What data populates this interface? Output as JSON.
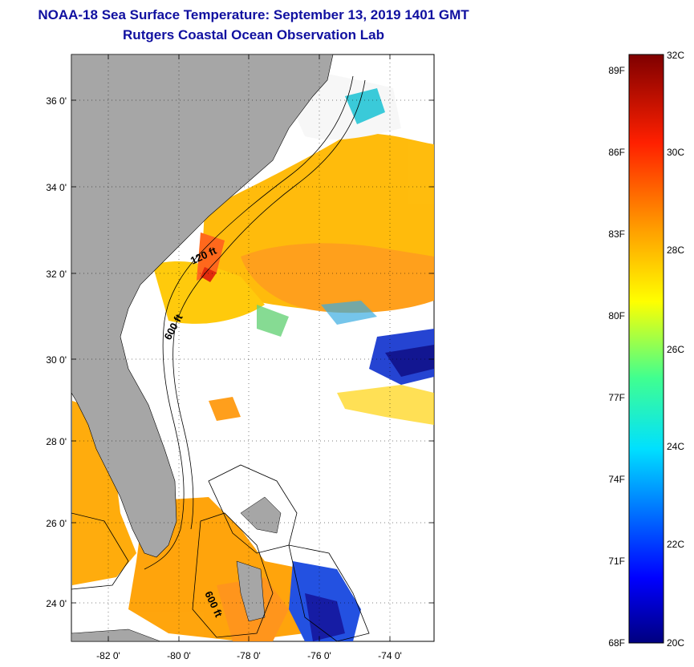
{
  "header": {
    "title": "NOAA-18 Sea Surface Temperature:  September 13, 2019 1401 GMT",
    "subtitle": "Rutgers Coastal Ocean Observation Lab"
  },
  "map": {
    "lat_labels": [
      "36 0'",
      "34 0'",
      "32 0'",
      "30 0'",
      "28 0'",
      "26 0'",
      "24 0'"
    ],
    "lon_labels": [
      "-82 0'",
      "-80 0'",
      "-78 0'",
      "-76 0'",
      "-74 0'"
    ],
    "contour_labels": [
      "120 ft",
      "600 ft",
      "600 ft"
    ],
    "lat_range": [
      23,
      37.2
    ],
    "lon_range": [
      -83,
      -73
    ],
    "colors": {
      "land": "#a6a6a6",
      "ocean_nodata": "#ffffff"
    }
  },
  "colorbar": {
    "fahrenheit_labels": [
      "89F",
      "86F",
      "83F",
      "80F",
      "77F",
      "74F",
      "71F",
      "68F"
    ],
    "celsius_labels": [
      "32C",
      "30C",
      "28C",
      "26C",
      "24C",
      "22C",
      "20C"
    ],
    "range_c": [
      20,
      32
    ],
    "colors": [
      "#00007f",
      "#0000ff",
      "#007fff",
      "#00ffff",
      "#7fff7f",
      "#ffff00",
      "#ff7f00",
      "#ff0000",
      "#7f0000"
    ]
  }
}
